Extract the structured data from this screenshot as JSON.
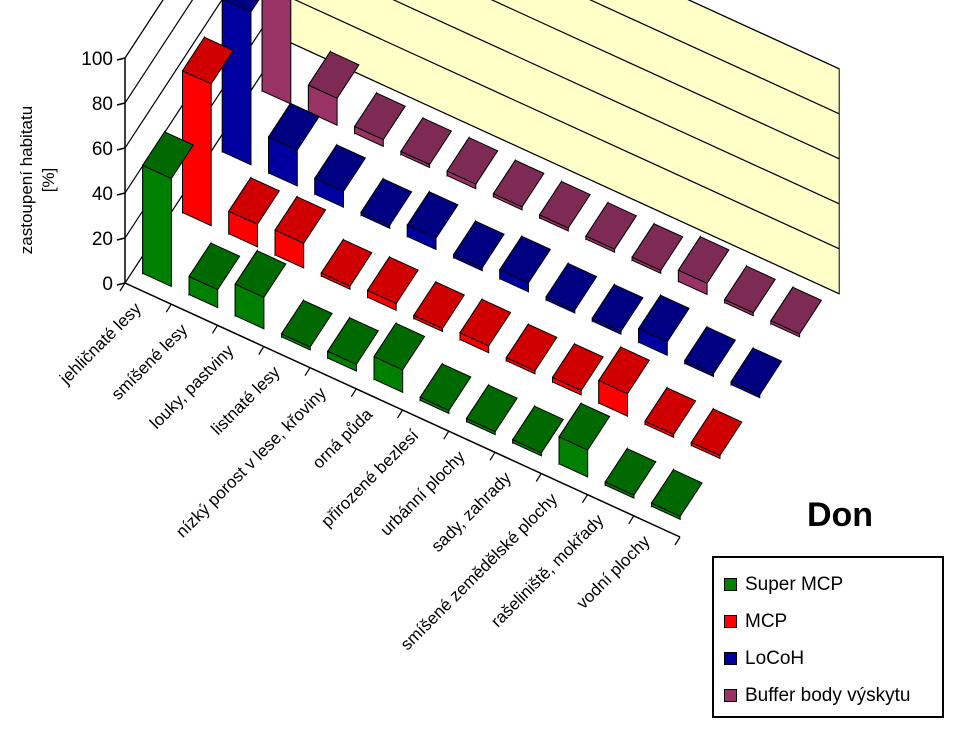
{
  "chart_data": {
    "type": "bar",
    "title": "Don",
    "ylabel_lines": [
      "zastoupení habitatu",
      "[%]"
    ],
    "ylim": [
      0,
      100
    ],
    "yticks": [
      "0",
      "20",
      "40",
      "60",
      "80",
      "100"
    ],
    "categories": [
      "jehličnaté lesy",
      "smíšené lesy",
      "louky, pastviny",
      "listnaté lesy",
      "nízký porost v lese, křoviny",
      "orná půda",
      "přirozené bezlesí",
      "urbánní plochy",
      "sady, zahrady",
      "smíšené zemědělské plochy",
      "rašeliniště, mokřady",
      "vodní plochy"
    ],
    "series": [
      {
        "name": "Super MCP",
        "color": "#008000",
        "values": [
          48,
          8,
          14,
          0,
          3,
          10,
          0,
          0,
          0,
          12,
          0,
          0
        ]
      },
      {
        "name": "MCP",
        "color": "#ff0000",
        "values": [
          63,
          10,
          11,
          1,
          3,
          0,
          3,
          0,
          2,
          10,
          0,
          0
        ]
      },
      {
        "name": "LoCoH",
        "color": "#0000a0",
        "values": [
          68,
          16,
          7,
          1,
          5,
          0,
          4,
          0,
          0,
          6,
          0,
          0
        ]
      },
      {
        "name": "Buffer body výskytu",
        "color": "#993366",
        "values": [
          88,
          12,
          3,
          0,
          2,
          0,
          0,
          0,
          0,
          5,
          0,
          0
        ]
      }
    ],
    "grid": true,
    "legend_position": "bottom-right"
  }
}
